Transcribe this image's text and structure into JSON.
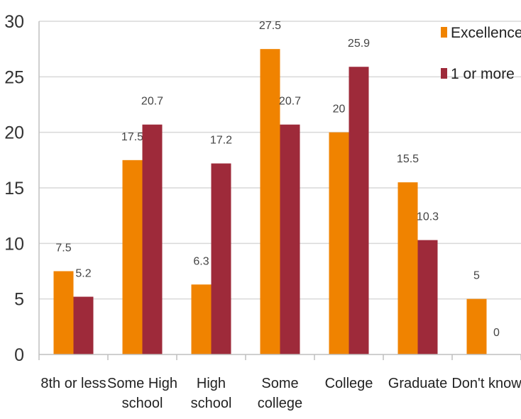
{
  "chart_data": {
    "type": "bar",
    "title": "",
    "xlabel": "",
    "ylabel": "",
    "ylim": [
      0,
      30
    ],
    "yticks": [
      "0",
      "5",
      "10",
      "15",
      "20",
      "25",
      "30"
    ],
    "categories": [
      [
        "8th or less"
      ],
      [
        "Some High",
        "school"
      ],
      [
        "High",
        "school"
      ],
      [
        "Some",
        "college"
      ],
      [
        "College"
      ],
      [
        "Graduate"
      ],
      [
        "Don't know"
      ]
    ],
    "series": [
      {
        "name": "Excellence",
        "color": "#F08300",
        "values": [
          7.5,
          17.5,
          6.3,
          27.5,
          20,
          15.5,
          5
        ],
        "labels": [
          "7.5",
          "17.5",
          "6.3",
          "27.5",
          "20",
          "15.5",
          "5"
        ]
      },
      {
        "name": "1 or more",
        "color": "#9E2A3A",
        "values": [
          5.2,
          20.7,
          17.2,
          20.7,
          25.9,
          10.3,
          0
        ],
        "labels": [
          "5.2",
          "20.7",
          "17.2",
          "20.7",
          "25.9",
          "10.3",
          "0"
        ]
      }
    ],
    "grid": true,
    "legend": "top-right"
  }
}
